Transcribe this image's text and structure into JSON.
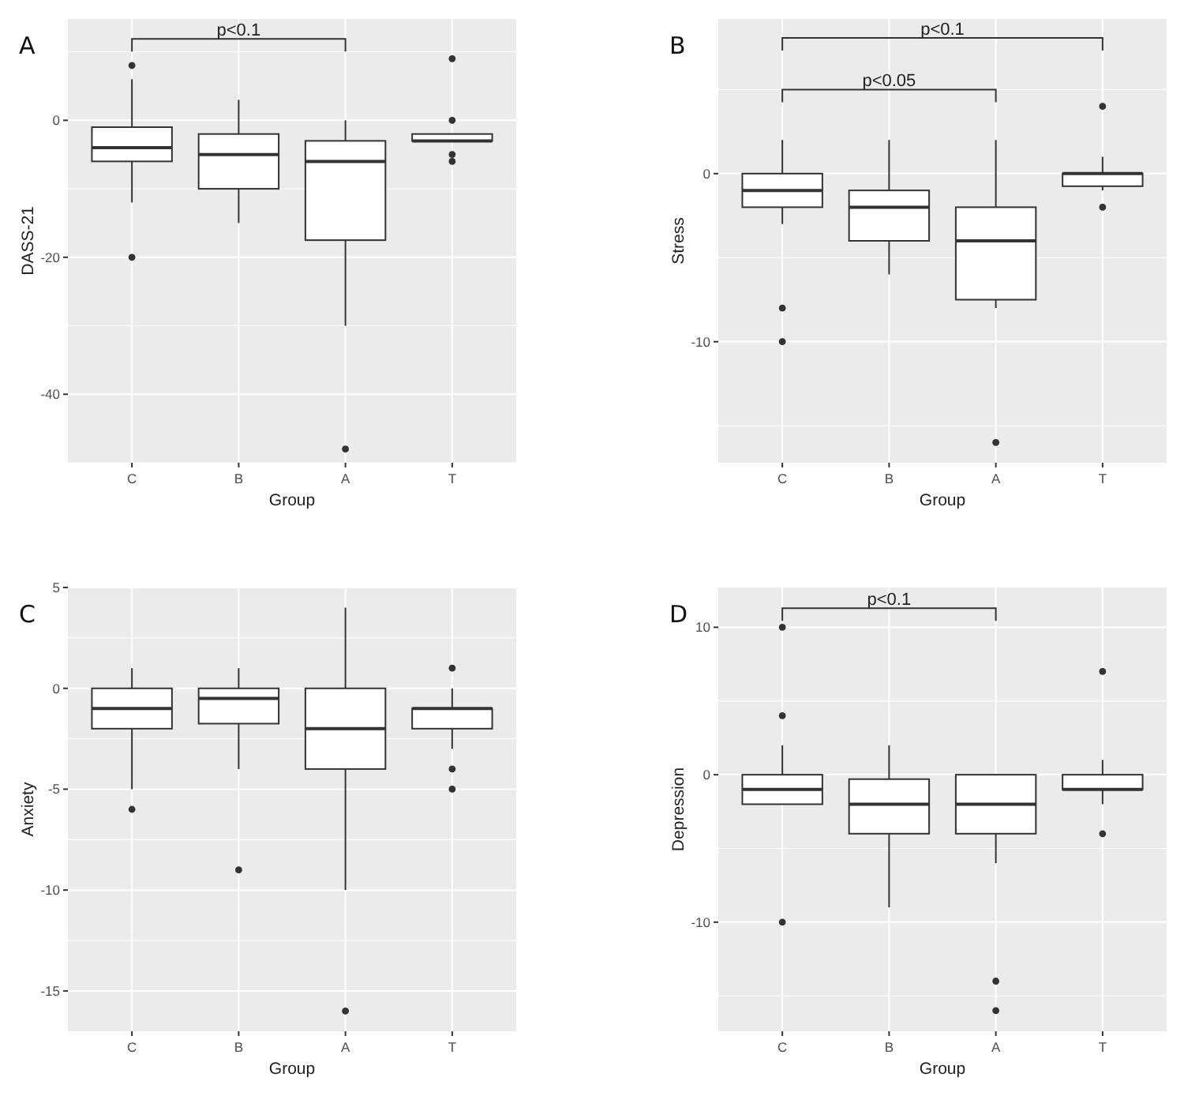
{
  "chart_data": [
    {
      "type": "box",
      "title": "A",
      "xlabel": "Group",
      "ylabel": "DASS-21",
      "categories": [
        "C",
        "B",
        "A",
        "T"
      ],
      "ylim": [
        -50,
        14.8
      ],
      "yticks": [
        -40,
        -20,
        0
      ],
      "grid": true,
      "annotations": [
        "p<0.1"
      ],
      "color": "#ffffff",
      "boxes": [
        {
          "low": -12,
          "q1": -6,
          "median": -4,
          "q3": -1,
          "high": 6,
          "outliers": [
            8,
            -20
          ]
        },
        {
          "low": -15,
          "q1": -10,
          "median": -5,
          "q3": -2,
          "high": 3
        },
        {
          "low": -30,
          "q1": -17.5,
          "median": -6,
          "q3": -3,
          "high": 0,
          "outliers": [
            -48
          ]
        },
        {
          "low": -3,
          "q1": -3,
          "median": -3,
          "q3": -2,
          "high": -2,
          "outliers": [
            9,
            0,
            -5,
            -6
          ]
        }
      ]
    },
    {
      "type": "box",
      "title": "B",
      "xlabel": "Group",
      "ylabel": "Stress",
      "categories": [
        "C",
        "B",
        "A",
        "T"
      ],
      "ylim": [
        -17.2,
        9.2
      ],
      "yticks": [
        -10,
        0
      ],
      "grid": true,
      "annotations": [
        "p<0.1",
        "p<0.05"
      ],
      "color": "#ffffff",
      "boxes": [
        {
          "low": -3,
          "q1": -2,
          "median": -1,
          "q3": 0,
          "high": 2,
          "outliers": [
            -8,
            -10
          ]
        },
        {
          "low": -6,
          "q1": -4,
          "median": -2,
          "q3": -1,
          "high": 2
        },
        {
          "low": -8,
          "q1": -7.5,
          "median": -4,
          "q3": -2,
          "high": 2,
          "outliers": [
            -16
          ]
        },
        {
          "low": -1,
          "q1": -0.75,
          "median": 0,
          "q3": 0,
          "high": 1,
          "outliers": [
            4,
            -2
          ]
        }
      ]
    },
    {
      "type": "box",
      "title": "C",
      "xlabel": "Group",
      "ylabel": "Anxiety",
      "categories": [
        "C",
        "B",
        "A",
        "T"
      ],
      "ylim": [
        -17,
        5
      ],
      "yticks": [
        -15,
        -10,
        -5,
        0,
        5
      ],
      "grid": true,
      "color": "#ffffff",
      "boxes": [
        {
          "low": -5,
          "q1": -2,
          "median": -1,
          "q3": 0,
          "high": 1,
          "outliers": [
            -6
          ]
        },
        {
          "low": -4,
          "q1": -1.75,
          "median": -0.5,
          "q3": 0,
          "high": 1,
          "outliers": [
            -9
          ]
        },
        {
          "low": -10,
          "q1": -4,
          "median": -2,
          "q3": 0,
          "high": 4,
          "outliers": [
            -16
          ]
        },
        {
          "low": -3,
          "q1": -2,
          "median": -1,
          "q3": -1,
          "high": 0,
          "outliers": [
            1,
            -4,
            -5
          ]
        }
      ]
    },
    {
      "type": "box",
      "title": "D",
      "xlabel": "Group",
      "ylabel": "Depression",
      "categories": [
        "C",
        "B",
        "A",
        "T"
      ],
      "ylim": [
        -17.4,
        12.7
      ],
      "yticks": [
        -10,
        0,
        10
      ],
      "grid": true,
      "annotations": [
        "p<0.1"
      ],
      "color": "#ffffff",
      "boxes": [
        {
          "low": -2,
          "q1": -2,
          "median": -1,
          "q3": 0,
          "high": 2,
          "outliers": [
            10,
            4,
            -10
          ]
        },
        {
          "low": -9,
          "q1": -4,
          "median": -2,
          "q3": -0.3,
          "high": 2
        },
        {
          "low": -6,
          "q1": -4,
          "median": -2,
          "q3": 0,
          "high": 0,
          "outliers": [
            -14,
            -16
          ]
        },
        {
          "low": -2,
          "q1": -1,
          "median": -1,
          "q3": 0,
          "high": 1,
          "outliers": [
            7,
            -4
          ]
        }
      ]
    }
  ]
}
